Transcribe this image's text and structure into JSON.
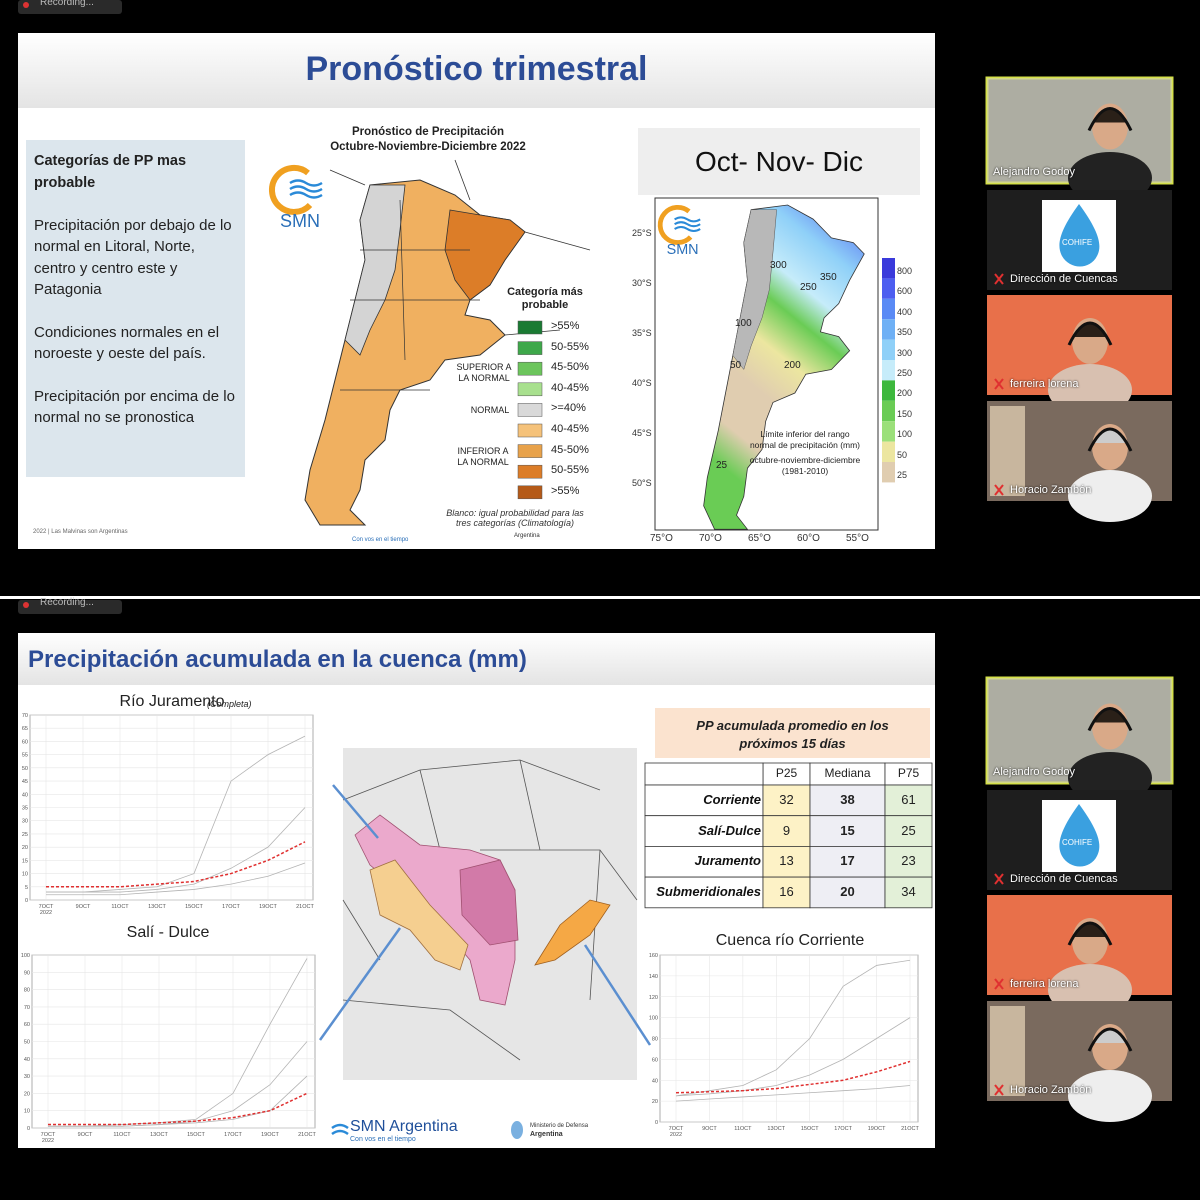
{
  "screens": [
    {
      "recording": "Recording...",
      "slide": {
        "title": "Pronóstico trimestral",
        "sidebar": {
          "heading": "Categorías de PP mas probable",
          "paragraphs": [
            "Precipitación por debajo de lo normal en  Litoral, Norte, centro y centro este y Patagonia",
            "Condiciones normales en el noroeste y oeste del país.",
            "Precipitación por encima de lo normal no se pronostica"
          ]
        },
        "forecast_map": {
          "title": [
            "Pronóstico de Precipitación",
            "Octubre-Noviembre-Diciembre 2022"
          ],
          "logo": "SMN",
          "legend_title": "Categoría más probable",
          "groups": [
            "SUPERIOR A LA NORMAL",
            "NORMAL",
            "INFERIOR A LA NORMAL"
          ],
          "legend": [
            {
              "label": ">55%",
              "color": "#1a7a33"
            },
            {
              "label": "50-55%",
              "color": "#3ea84a"
            },
            {
              "label": "45-50%",
              "color": "#6cc55c"
            },
            {
              "label": "40-45%",
              "color": "#a8e08e"
            },
            {
              "label": ">=40%",
              "color": "#d9d9d9"
            },
            {
              "label": "40-45%",
              "color": "#f5c27a"
            },
            {
              "label": "45-50%",
              "color": "#e8a24a"
            },
            {
              "label": "50-55%",
              "color": "#dc7d28"
            },
            {
              "label": ">55%",
              "color": "#b55a18"
            }
          ],
          "note": "Blanco: igual probabilidad para las tres categorías (Climatología)"
        },
        "normal_map": {
          "heading": "Oct- Nov- Dic",
          "logo": "SMN",
          "caption": [
            "Límite inferior del rango",
            "normal de precipitación (mm)",
            "octubre-noviembre-diciembre",
            "(1981-2010)"
          ],
          "colorbar": [
            {
              "label": "800",
              "color": "#3a3adb"
            },
            {
              "label": "600",
              "color": "#4d5ef0"
            },
            {
              "label": "400",
              "color": "#5a8af5"
            },
            {
              "label": "350",
              "color": "#6fb0f5"
            },
            {
              "label": "300",
              "color": "#8fd0f8"
            },
            {
              "label": "250",
              "color": "#c6ecfa"
            },
            {
              "label": "200",
              "color": "#3db83d"
            },
            {
              "label": "150",
              "color": "#6acc55"
            },
            {
              "label": "100",
              "color": "#9be07a"
            },
            {
              "label": "50",
              "color": "#ece6a0"
            },
            {
              "label": "25",
              "color": "#e0cdb0"
            }
          ],
          "lon_labels": [
            "75°O",
            "70°O",
            "65°O",
            "60°O",
            "55°O"
          ],
          "lat_labels": [
            "25°S",
            "30°S",
            "35°S",
            "40°S",
            "45°S",
            "50°S"
          ],
          "contours": [
            "350",
            "300",
            "250",
            "200",
            "100",
            "50",
            "25"
          ]
        },
        "footer": "2022 | Las Malvinas son Argentinas",
        "tagline": "Con vos en el tiempo",
        "ministry": "Argentina"
      },
      "participants": [
        {
          "name": "Alejandro Godoy"
        },
        {
          "name": "Dirección de Cuencas",
          "logo": "COHIFE"
        },
        {
          "name": "ferreira lorena"
        },
        {
          "name": "Horacio Zambón"
        }
      ]
    },
    {
      "recording": "Recording...",
      "slide": {
        "title": "Precipitación acumulada en la cuenca (mm)",
        "charts": [
          {
            "title": "Río Juramento",
            "subtitle": "(Completa)",
            "categories": [
              "7OCT",
              "9OCT",
              "11OCT",
              "13OCT",
              "15OCT",
              "17OCT",
              "19OCT",
              "21OCT"
            ],
            "year": "2022",
            "ylim": [
              0,
              70
            ],
            "yticks": [
              0,
              5,
              10,
              15,
              20,
              25,
              30,
              35,
              40,
              45,
              50,
              55,
              60,
              65,
              70
            ],
            "series": [
              {
                "color": "#b4b4b4",
                "values": [
                  3,
                  3,
                  4,
                  5,
                  10,
                  45,
                  55,
                  62
                ]
              },
              {
                "color": "#b4b4b4",
                "values": [
                  3,
                  3,
                  3,
                  4,
                  6,
                  12,
                  20,
                  35
                ]
              },
              {
                "color": "#b4b4b4",
                "values": [
                  2,
                  2,
                  2,
                  3,
                  4,
                  6,
                  9,
                  14
                ]
              },
              {
                "color": "#e03030",
                "values": [
                  5,
                  5,
                  5,
                  6,
                  7,
                  10,
                  15,
                  22
                ]
              }
            ]
          },
          {
            "title": "Salí - Dulce",
            "categories": [
              "7OCT",
              "9OCT",
              "11OCT",
              "13OCT",
              "15OCT",
              "17OCT",
              "19OCT",
              "21OCT"
            ],
            "year": "2022",
            "ylim": [
              0,
              100
            ],
            "yticks": [
              0,
              10,
              20,
              30,
              40,
              50,
              60,
              70,
              80,
              90,
              100
            ],
            "series": [
              {
                "color": "#b4b4b4",
                "values": [
                  1,
                  1,
                  2,
                  3,
                  5,
                  20,
                  60,
                  98
                ]
              },
              {
                "color": "#b4b4b4",
                "values": [
                  1,
                  1,
                  1,
                  2,
                  4,
                  10,
                  25,
                  50
                ]
              },
              {
                "color": "#b4b4b4",
                "values": [
                  1,
                  1,
                  1,
                  2,
                  3,
                  5,
                  10,
                  30
                ]
              },
              {
                "color": "#e03030",
                "values": [
                  2,
                  2,
                  2,
                  3,
                  4,
                  6,
                  10,
                  20
                ]
              }
            ]
          },
          {
            "title": "Cuenca río Corriente",
            "categories": [
              "7OCT",
              "9OCT",
              "11OCT",
              "13OCT",
              "15OCT",
              "17OCT",
              "19OCT",
              "21OCT"
            ],
            "year": "2022",
            "ylim": [
              0,
              160
            ],
            "yticks": [
              0,
              20,
              40,
              60,
              80,
              100,
              120,
              140,
              160
            ],
            "series": [
              {
                "color": "#b4b4b4",
                "values": [
                  25,
                  30,
                  35,
                  50,
                  80,
                  130,
                  150,
                  155
                ]
              },
              {
                "color": "#b4b4b4",
                "values": [
                  25,
                  27,
                  30,
                  35,
                  45,
                  60,
                  80,
                  100
                ]
              },
              {
                "color": "#b4b4b4",
                "values": [
                  20,
                  22,
                  24,
                  26,
                  28,
                  30,
                  32,
                  35
                ]
              },
              {
                "color": "#e03030",
                "values": [
                  28,
                  29,
                  30,
                  32,
                  36,
                  40,
                  48,
                  58
                ]
              }
            ]
          }
        ],
        "table": {
          "title": "PP acumulada promedio en los próximos 15 días",
          "columns": [
            "P25",
            "Mediana",
            "P75"
          ],
          "rows": [
            {
              "name": "Corriente",
              "values": [
                32,
                38,
                61
              ]
            },
            {
              "name": "Salí-Dulce",
              "values": [
                9,
                15,
                25
              ]
            },
            {
              "name": "Juramento",
              "values": [
                13,
                17,
                23
              ]
            },
            {
              "name": "Submeridionales",
              "values": [
                16,
                20,
                34
              ]
            }
          ]
        },
        "brand": "SMN Argentina",
        "tagline": "Con vos en el tiempo",
        "ministry": [
          "Ministerio de Defensa",
          "Argentina"
        ]
      },
      "participants": [
        {
          "name": "Alejandro Godoy"
        },
        {
          "name": "Dirección de Cuencas",
          "logo": "COHIFE"
        },
        {
          "name": "ferreira lorena"
        },
        {
          "name": "Horacio Zambón"
        }
      ]
    }
  ]
}
